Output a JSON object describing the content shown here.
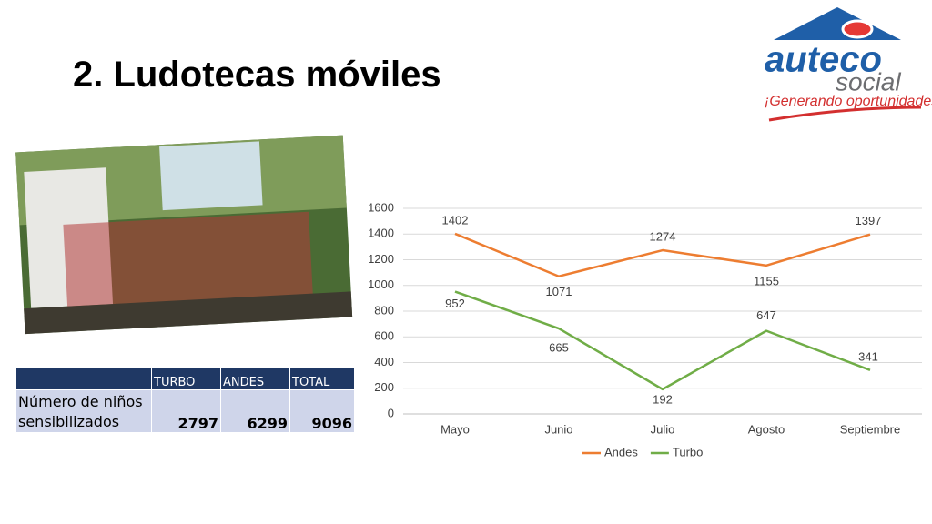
{
  "title": "2. Ludotecas móviles",
  "logo": {
    "brand": "auteco",
    "sub": "social",
    "tagline": "¡Generando oportunidades!"
  },
  "table": {
    "header": [
      "TURBO",
      "ANDES",
      "TOTAL"
    ],
    "rows": [
      [
        "Número de niños sensibilizados",
        2797,
        6299,
        9096
      ]
    ]
  },
  "chart_data": {
    "type": "line",
    "categories": [
      "Mayo",
      "Junio",
      "Julio",
      "Agosto",
      "Septiembre"
    ],
    "series": [
      {
        "name": "Andes",
        "color": "#ed7d31",
        "values": [
          1402,
          1071,
          1274,
          1155,
          1397
        ]
      },
      {
        "name": "Turbo",
        "color": "#70ad47",
        "values": [
          952,
          665,
          192,
          647,
          341
        ]
      }
    ],
    "ylim": [
      0,
      1600
    ],
    "yticks": [
      0,
      200,
      400,
      600,
      800,
      1000,
      1200,
      1400,
      1600
    ],
    "grid": true,
    "legend": "bottom"
  }
}
